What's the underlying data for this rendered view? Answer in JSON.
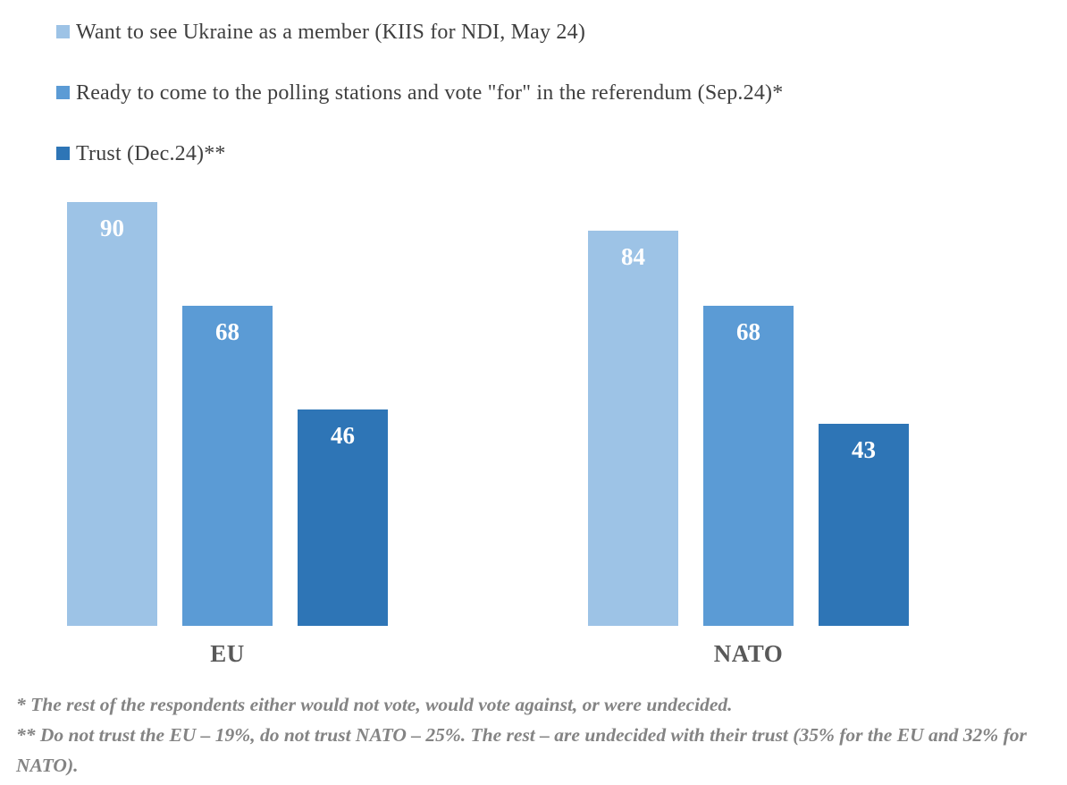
{
  "legend": {
    "items": [
      {
        "label": "Want to see Ukraine as a member (KIIS for NDI, May 24)",
        "color": "#9DC3E6"
      },
      {
        "label": "Ready to come to the polling stations and vote \"for\" in the referendum (Sep.24)*",
        "color": "#5B9BD5"
      },
      {
        "label": "Trust (Dec.24)**",
        "color": "#2E75B6"
      }
    ]
  },
  "chart_data": {
    "type": "bar",
    "categories": [
      "EU",
      "NATO"
    ],
    "series": [
      {
        "name": "Want to see Ukraine as a member (KIIS for NDI, May 24)",
        "color": "#9DC3E6",
        "values": [
          90,
          84
        ]
      },
      {
        "name": "Ready to come to the polling stations and vote \"for\" in the referendum (Sep.24)*",
        "color": "#5B9BD5",
        "values": [
          68,
          68
        ]
      },
      {
        "name": "Trust (Dec.24)**",
        "color": "#2E75B6",
        "values": [
          46,
          43
        ]
      }
    ],
    "ylim": [
      0,
      90
    ],
    "data_labels": true,
    "data_label_color": "#ffffff",
    "grid": false,
    "axes_visible": false,
    "legend_position": "top-left",
    "category_label_color": "#595959"
  },
  "footnotes": {
    "line1": "* The rest of the respondents either would not vote, would vote against, or were undecided.",
    "line2": "** Do not trust the EU – 19%, do not trust NATO – 25%. The rest – are undecided with their trust (35% for the EU and 32% for NATO)."
  }
}
